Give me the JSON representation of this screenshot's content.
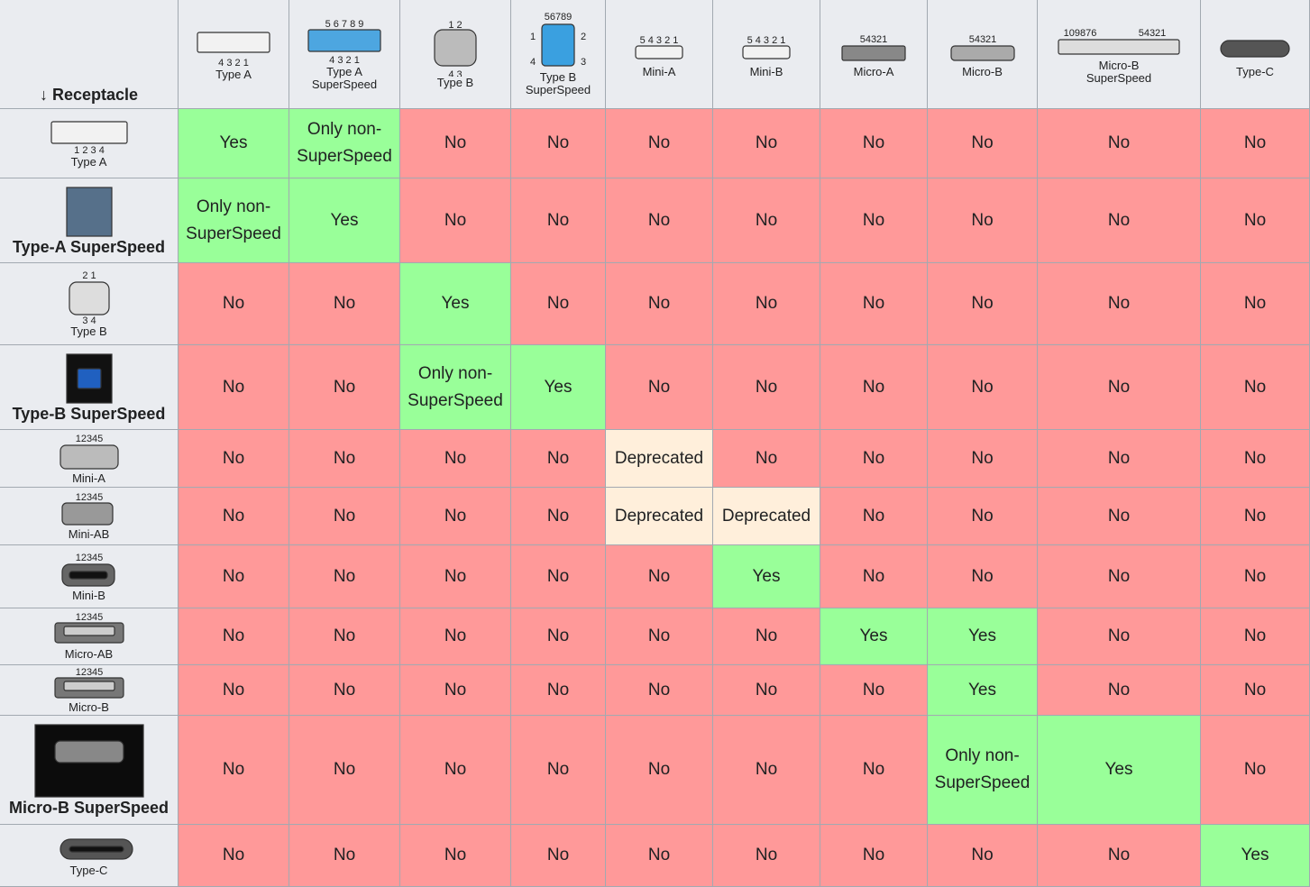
{
  "corner": "↓ Receptacle",
  "columns": [
    {
      "label": "Type A",
      "pins": [
        "4  3  2  1"
      ]
    },
    {
      "label": "Type A SuperSpeed",
      "pins": [
        "5  6  7  8  9",
        "4  3  2  1"
      ]
    },
    {
      "label": "Type B",
      "pins": [
        "1  2",
        "4  3"
      ]
    },
    {
      "label": "Type B SuperSpeed",
      "pins": [
        "56789",
        "1",
        "2",
        "4",
        "3"
      ]
    },
    {
      "label": "Mini-A",
      "pins": [
        "5 4 3 2 1"
      ]
    },
    {
      "label": "Mini-B",
      "pins": [
        "5 4 3 2 1"
      ]
    },
    {
      "label": "Micro-A",
      "pins": [
        "54321"
      ]
    },
    {
      "label": "Micro-B",
      "pins": [
        "54321"
      ]
    },
    {
      "label": "Micro-B SuperSpeed",
      "pins": [
        "109876",
        "54321"
      ]
    },
    {
      "label": "Type-C",
      "pins": []
    }
  ],
  "rows": [
    {
      "label": "Type A",
      "pins": [
        "1   2   3   4"
      ]
    },
    {
      "label": "Type-A SuperSpeed",
      "pins": []
    },
    {
      "label": "Type B",
      "pins": [
        "2  1",
        "3  4"
      ]
    },
    {
      "label": "Type-B SuperSpeed",
      "pins": []
    },
    {
      "label": "Mini-A",
      "pins": [
        "12345"
      ]
    },
    {
      "label": "Mini-AB",
      "pins": [
        "12345"
      ]
    },
    {
      "label": "Mini-B",
      "pins": [
        "12345"
      ]
    },
    {
      "label": "Micro-AB",
      "pins": [
        "12345"
      ]
    },
    {
      "label": "Micro-B",
      "pins": [
        "12345"
      ]
    },
    {
      "label": "Micro-B SuperSpeed",
      "pins": []
    },
    {
      "label": "Type-C",
      "pins": []
    }
  ],
  "cells": [
    [
      "Yes",
      "Only non-SuperSpeed",
      "No",
      "No",
      "No",
      "No",
      "No",
      "No",
      "No",
      "No"
    ],
    [
      "Only non-SuperSpeed",
      "Yes",
      "No",
      "No",
      "No",
      "No",
      "No",
      "No",
      "No",
      "No"
    ],
    [
      "No",
      "No",
      "Yes",
      "No",
      "No",
      "No",
      "No",
      "No",
      "No",
      "No"
    ],
    [
      "No",
      "No",
      "Only non-SuperSpeed",
      "Yes",
      "No",
      "No",
      "No",
      "No",
      "No",
      "No"
    ],
    [
      "No",
      "No",
      "No",
      "No",
      "Deprecated",
      "No",
      "No",
      "No",
      "No",
      "No"
    ],
    [
      "No",
      "No",
      "No",
      "No",
      "Deprecated",
      "Deprecated",
      "No",
      "No",
      "No",
      "No"
    ],
    [
      "No",
      "No",
      "No",
      "No",
      "No",
      "Yes",
      "No",
      "No",
      "No",
      "No"
    ],
    [
      "No",
      "No",
      "No",
      "No",
      "No",
      "No",
      "Yes",
      "Yes",
      "No",
      "No"
    ],
    [
      "No",
      "No",
      "No",
      "No",
      "No",
      "No",
      "No",
      "Yes",
      "No",
      "No"
    ],
    [
      "No",
      "No",
      "No",
      "No",
      "No",
      "No",
      "No",
      "Only non-SuperSpeed",
      "Yes",
      "No"
    ],
    [
      "No",
      "No",
      "No",
      "No",
      "No",
      "No",
      "No",
      "No",
      "No",
      "Yes"
    ]
  ],
  "palette": {
    "Yes": "#99ff99",
    "Only non-SuperSpeed": "#99ff99",
    "No": "#ff9999",
    "Deprecated": "#ffefdb"
  }
}
